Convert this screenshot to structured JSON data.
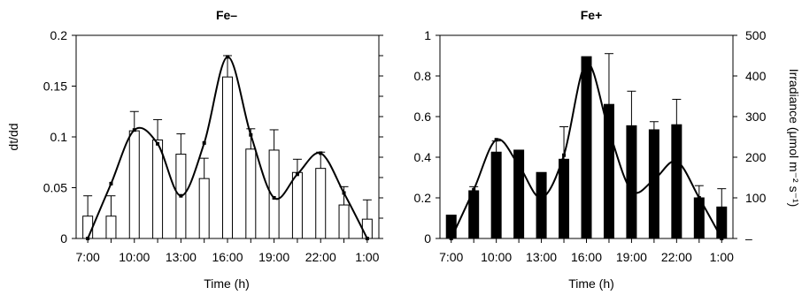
{
  "chart_data": [
    {
      "type": "bar",
      "title": "Fe–",
      "xlabel": "Time (h)",
      "ylabel": "dt/dd",
      "ylim": [
        0,
        0.2
      ],
      "yticks": [
        "0",
        "0.05",
        "0.1",
        "0.15",
        "0.2"
      ],
      "xticks": [
        "7:00",
        "10:00",
        "13:00",
        "16:00",
        "19:00",
        "22:00",
        "1:00"
      ],
      "bar_style": "open",
      "categories": [
        "7:00",
        "8:30",
        "10:00",
        "11:30",
        "13:00",
        "14:30",
        "16:00",
        "17:30",
        "19:00",
        "20:30",
        "22:00",
        "23:30",
        "1:00"
      ],
      "values": [
        0.022,
        0.022,
        0.106,
        0.097,
        0.083,
        0.059,
        0.159,
        0.088,
        0.087,
        0.065,
        0.069,
        0.033,
        0.019
      ],
      "errors": [
        0.02,
        0.02,
        0.019,
        0.02,
        0.02,
        0.02,
        0.021,
        0.02,
        0.02,
        0.013,
        0.016,
        0.018,
        0.019
      ],
      "right_axis": {
        "label": "",
        "ylim": [
          0,
          500
        ],
        "ticks_labeled": false
      },
      "irradiance_curve": {
        "x": [
          "7:00",
          "8:30",
          "10:00",
          "11:30",
          "13:00",
          "14:30",
          "16:00",
          "17:30",
          "19:00",
          "20:30",
          "22:00",
          "23:30",
          "1:00"
        ],
        "values": [
          0,
          135,
          267,
          233,
          105,
          235,
          447,
          255,
          100,
          158,
          210,
          112,
          0
        ]
      }
    },
    {
      "type": "bar",
      "title": "Fe+",
      "xlabel": "Time (h)",
      "ylabel": "",
      "ylim": [
        0,
        1
      ],
      "yticks": [
        "0",
        "0.2",
        "0.4",
        "0.6",
        "0.8",
        "1"
      ],
      "xticks": [
        "7:00",
        "10:00",
        "13:00",
        "16:00",
        "19:00",
        "22:00",
        "1:00"
      ],
      "bar_style": "filled",
      "categories": [
        "7:00",
        "8:30",
        "10:00",
        "11:30",
        "13:00",
        "14:30",
        "16:00",
        "17:30",
        "19:00",
        "20:30",
        "22:00",
        "23:30",
        "1:00"
      ],
      "values": [
        0.115,
        0.235,
        0.425,
        0.435,
        0.325,
        0.39,
        0.895,
        0.66,
        0.555,
        0.535,
        0.56,
        0.2,
        0.155
      ],
      "errors": [
        0,
        0.02,
        0.055,
        0,
        0,
        0.16,
        0,
        0.25,
        0.17,
        0.04,
        0.125,
        0.06,
        0.09
      ],
      "right_axis": {
        "label": "Irradiance (μmol m⁻² s⁻¹)",
        "ylim": [
          0,
          500
        ],
        "yticks": [
          "–",
          "100",
          "200",
          "300",
          "400",
          "500"
        ]
      },
      "irradiance_curve": {
        "x": [
          "7:00",
          "8:30",
          "10:00",
          "11:30",
          "13:00",
          "14:30",
          "16:00",
          "17:30",
          "19:00",
          "20:30",
          "22:00",
          "23:30",
          "1:00"
        ],
        "values": [
          0,
          120,
          243,
          180,
          100,
          205,
          432,
          265,
          118,
          145,
          190,
          100,
          0
        ]
      }
    }
  ]
}
